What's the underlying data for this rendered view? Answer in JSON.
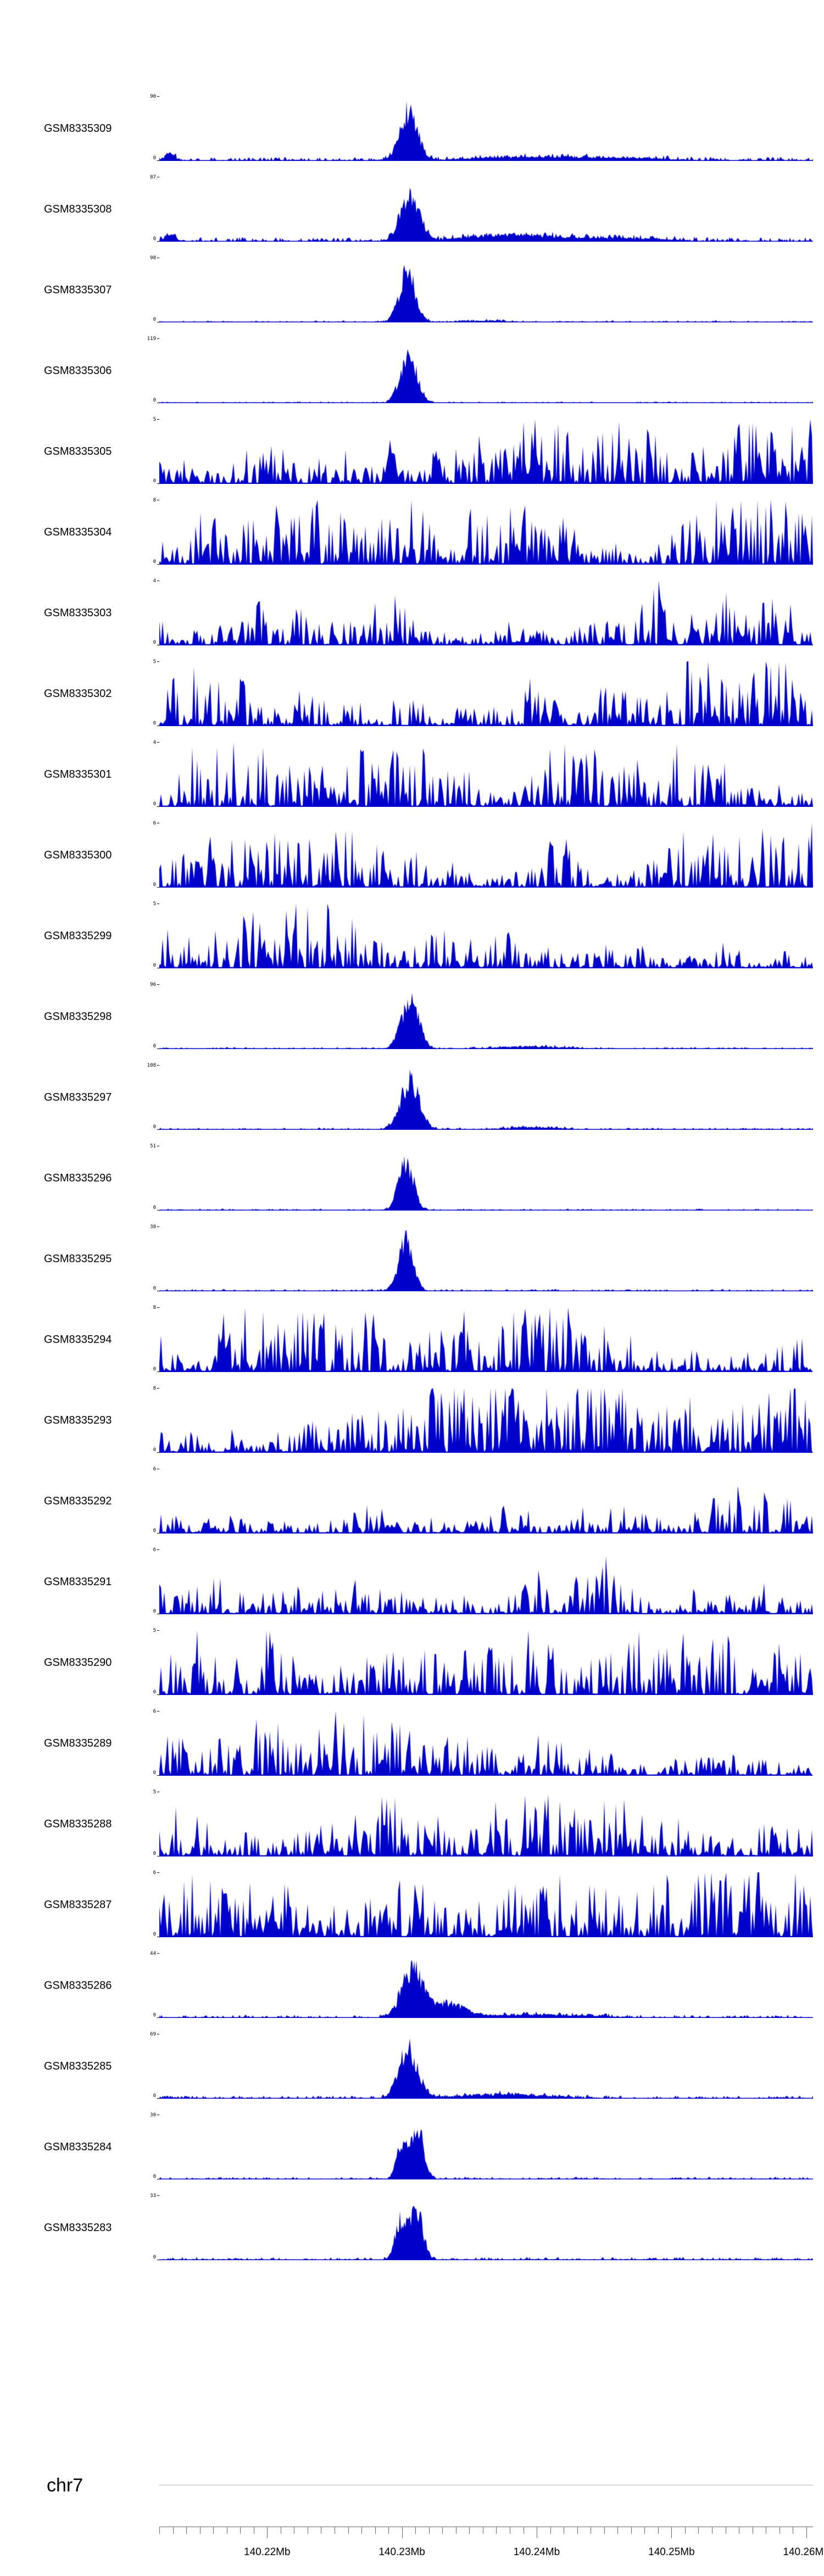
{
  "chart_data": {
    "type": "area",
    "chromosome": "chr7",
    "track_color": "#0000cd",
    "y_bottom_label": "0",
    "axis": {
      "start_mb": 140.212,
      "end_mb": 140.2605,
      "minor_step_mb": 0.001,
      "major_ticks": [
        {
          "mb": 140.22,
          "label": "140.22Mb"
        },
        {
          "mb": 140.23,
          "label": "140.23Mb"
        },
        {
          "mb": 140.24,
          "label": "140.24Mb"
        },
        {
          "mb": 140.25,
          "label": "140.25Mb"
        },
        {
          "mb": 140.26,
          "label": "140.26Mb"
        }
      ]
    },
    "tracks": [
      {
        "name": "GSM8335309",
        "ymax": 90,
        "seed": 3,
        "noisy": false,
        "baseline": 0.06,
        "bumps": [
          {
            "c": 140.2305,
            "s": 0.00065,
            "a": 0.95
          },
          {
            "c": 140.2395,
            "s": 0.0045,
            "a": 0.07
          },
          {
            "c": 140.2128,
            "s": 0.0004,
            "a": 0.12
          },
          {
            "c": 140.247,
            "s": 0.003,
            "a": 0.04
          }
        ]
      },
      {
        "name": "GSM8335308",
        "ymax": 87,
        "seed": 10,
        "noisy": false,
        "baseline": 0.07,
        "bumps": [
          {
            "c": 140.2306,
            "s": 0.0007,
            "a": 0.95
          },
          {
            "c": 140.2375,
            "s": 0.003,
            "a": 0.12
          },
          {
            "c": 140.2455,
            "s": 0.004,
            "a": 0.06
          },
          {
            "c": 140.2128,
            "s": 0.0004,
            "a": 0.14
          }
        ]
      },
      {
        "name": "GSM8335307",
        "ymax": 98,
        "seed": 17,
        "noisy": false,
        "baseline": 0.03,
        "bumps": [
          {
            "c": 140.2304,
            "s": 0.0006,
            "a": 0.95
          },
          {
            "c": 140.236,
            "s": 0.002,
            "a": 0.03
          }
        ]
      },
      {
        "name": "GSM8335306",
        "ymax": 119,
        "seed": 24,
        "noisy": false,
        "baseline": 0.025,
        "bumps": [
          {
            "c": 140.2305,
            "s": 0.00062,
            "a": 0.95
          }
        ]
      },
      {
        "name": "GSM8335305",
        "ymax": 5,
        "seed": 31,
        "noisy": true,
        "level": 1.0,
        "bumps": [
          {
            "c": 140.2292,
            "s": 0.0003,
            "a": 0.5
          }
        ]
      },
      {
        "name": "GSM8335304",
        "ymax": 8,
        "seed": 38,
        "noisy": true,
        "level": 1.05,
        "bumps": []
      },
      {
        "name": "GSM8335303",
        "ymax": 4,
        "seed": 45,
        "noisy": true,
        "level": 0.85,
        "bumps": []
      },
      {
        "name": "GSM8335302",
        "ymax": 5,
        "seed": 52,
        "noisy": true,
        "level": 1.0,
        "bumps": []
      },
      {
        "name": "GSM8335301",
        "ymax": 4,
        "seed": 59,
        "noisy": true,
        "level": 0.95,
        "bumps": []
      },
      {
        "name": "GSM8335300",
        "ymax": 6,
        "seed": 66,
        "noisy": true,
        "level": 0.9,
        "bumps": []
      },
      {
        "name": "GSM8335299",
        "ymax": 5,
        "seed": 73,
        "noisy": true,
        "level": 1.0,
        "bumps": []
      },
      {
        "name": "GSM8335298",
        "ymax": 96,
        "seed": 80,
        "noisy": false,
        "baseline": 0.03,
        "bumps": [
          {
            "c": 140.2306,
            "s": 0.00065,
            "a": 0.95
          },
          {
            "c": 140.2395,
            "s": 0.0025,
            "a": 0.05
          }
        ]
      },
      {
        "name": "GSM8335297",
        "ymax": 108,
        "seed": 87,
        "noisy": false,
        "baseline": 0.035,
        "bumps": [
          {
            "c": 140.2306,
            "s": 0.0007,
            "a": 0.95
          },
          {
            "c": 140.2398,
            "s": 0.002,
            "a": 0.05
          }
        ]
      },
      {
        "name": "GSM8335296",
        "ymax": 51,
        "seed": 94,
        "noisy": false,
        "baseline": 0.03,
        "bumps": [
          {
            "c": 140.2303,
            "s": 0.00055,
            "a": 0.95
          }
        ]
      },
      {
        "name": "GSM8335295",
        "ymax": 38,
        "seed": 101,
        "noisy": false,
        "baseline": 0.035,
        "bumps": [
          {
            "c": 140.2303,
            "s": 0.00055,
            "a": 0.95
          }
        ]
      },
      {
        "name": "GSM8335294",
        "ymax": 8,
        "seed": 108,
        "noisy": true,
        "level": 1.05,
        "bumps": []
      },
      {
        "name": "GSM8335293",
        "ymax": 8,
        "seed": 115,
        "noisy": true,
        "level": 1.1,
        "bumps": []
      },
      {
        "name": "GSM8335292",
        "ymax": 6,
        "seed": 122,
        "noisy": true,
        "level": 0.9,
        "bumps": []
      },
      {
        "name": "GSM8335291",
        "ymax": 6,
        "seed": 129,
        "noisy": true,
        "level": 0.95,
        "bumps": []
      },
      {
        "name": "GSM8335290",
        "ymax": 5,
        "seed": 136,
        "noisy": true,
        "level": 0.95,
        "bumps": []
      },
      {
        "name": "GSM8335289",
        "ymax": 6,
        "seed": 143,
        "noisy": true,
        "level": 0.9,
        "bumps": []
      },
      {
        "name": "GSM8335288",
        "ymax": 5,
        "seed": 150,
        "noisy": true,
        "level": 0.95,
        "bumps": []
      },
      {
        "name": "GSM8335287",
        "ymax": 6,
        "seed": 157,
        "noisy": true,
        "level": 1.15,
        "bumps": []
      },
      {
        "name": "GSM8335286",
        "ymax": 44,
        "seed": 164,
        "noisy": false,
        "baseline": 0.05,
        "bumps": [
          {
            "c": 140.2308,
            "s": 0.0008,
            "a": 0.95
          },
          {
            "c": 140.2335,
            "s": 0.0012,
            "a": 0.25
          },
          {
            "c": 140.24,
            "s": 0.004,
            "a": 0.06
          }
        ]
      },
      {
        "name": "GSM8335285",
        "ymax": 69,
        "seed": 171,
        "noisy": false,
        "baseline": 0.05,
        "bumps": [
          {
            "c": 140.2305,
            "s": 0.0007,
            "a": 0.95
          },
          {
            "c": 140.2375,
            "s": 0.0035,
            "a": 0.08
          }
        ]
      },
      {
        "name": "GSM8335284",
        "ymax": 30,
        "seed": 178,
        "noisy": false,
        "baseline": 0.04,
        "bumps": [
          {
            "c": 140.23,
            "s": 0.0004,
            "a": 0.7
          },
          {
            "c": 140.2312,
            "s": 0.00045,
            "a": 0.95
          }
        ]
      },
      {
        "name": "GSM8335283",
        "ymax": 33,
        "seed": 185,
        "noisy": false,
        "baseline": 0.05,
        "bumps": [
          {
            "c": 140.2299,
            "s": 0.00042,
            "a": 0.75
          },
          {
            "c": 140.2311,
            "s": 0.00048,
            "a": 0.95
          }
        ]
      }
    ]
  }
}
